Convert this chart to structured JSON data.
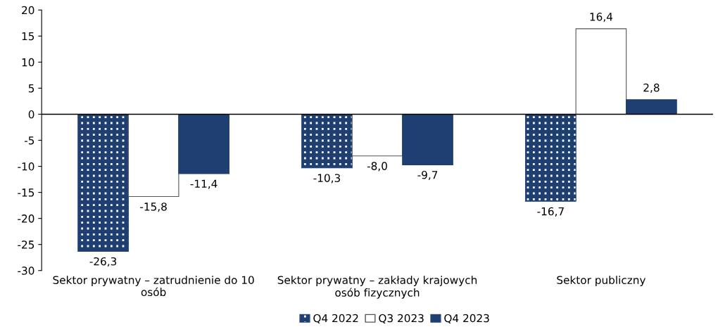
{
  "chart_data": {
    "type": "bar",
    "categories": [
      "Sektor prywatny – zatrudnienie do 10 osób",
      "Sektor prywatny – zakłady krajowych osób fizycznych",
      "Sektor publiczny"
    ],
    "series": [
      {
        "name": "Q4 2022",
        "color": "#1f3f73",
        "values": [
          -26.3,
          -10.3,
          -16.7
        ],
        "value_labels": [
          "-26,3",
          "-10,3",
          "-16,7"
        ]
      },
      {
        "name": "Q3 2023",
        "color": "#ffffff",
        "values": [
          -15.8,
          -8.0,
          16.4
        ],
        "value_labels": [
          "-15,8",
          "-8,0",
          "16,4"
        ]
      },
      {
        "name": "Q4 2023",
        "color": "#1f3f73",
        "values": [
          -11.4,
          -9.7,
          2.8
        ],
        "value_labels": [
          "-11,4",
          "-9,7",
          "2,8"
        ]
      }
    ],
    "ylim": [
      -30,
      20
    ],
    "yticks": [
      -30,
      -25,
      -20,
      -15,
      -10,
      -5,
      0,
      5,
      10,
      15,
      20
    ],
    "ref_lines": [
      {
        "axis": "y",
        "value": 0,
        "color": "#000000"
      }
    ],
    "grid": false,
    "legend": "bottom"
  }
}
